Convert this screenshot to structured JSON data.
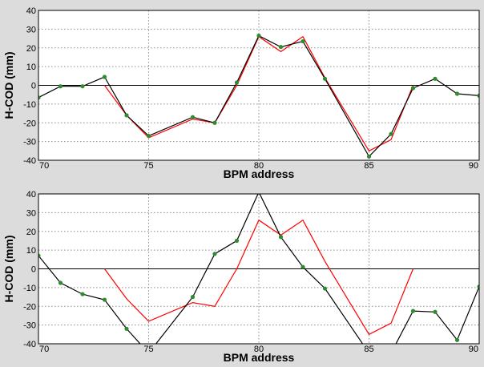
{
  "chart_data": [
    {
      "type": "line",
      "title": "",
      "xlabel": "BPM address",
      "ylabel": "H-COD (mm)",
      "xlim": [
        70,
        90
      ],
      "ylim": [
        -40,
        40
      ],
      "x_ticks": [
        "70",
        "75",
        "80",
        "85",
        "90"
      ],
      "y_ticks": [
        "40",
        "30",
        "20",
        "10",
        "0",
        "-10",
        "-20",
        "-30",
        "-40"
      ],
      "grid": true,
      "zero_line": true,
      "series": [
        {
          "color": "#ff0000",
          "marker": false,
          "x": [
            73,
            74,
            75,
            77,
            78,
            79,
            80,
            81,
            82,
            83,
            85,
            86,
            87
          ],
          "y": [
            0,
            -16,
            -28,
            -18,
            -20,
            0,
            26,
            18,
            26,
            4,
            -35,
            -29,
            0
          ]
        },
        {
          "color": "#000000",
          "marker": true,
          "marker_color": "#2e8b2e",
          "x": [
            70,
            71,
            72,
            73,
            74,
            75,
            77,
            78,
            79,
            80,
            81,
            82,
            83,
            85,
            86,
            87,
            88,
            89,
            90
          ],
          "y": [
            -6.5,
            -0.5,
            -0.5,
            4.5,
            -16,
            -27,
            -17,
            -20,
            1.5,
            26.5,
            20.5,
            23.5,
            3.5,
            -38,
            -26,
            -1.5,
            3.5,
            -4.5,
            -5.5
          ]
        }
      ]
    },
    {
      "type": "line",
      "title": "",
      "xlabel": "BPM address",
      "ylabel": "H-COD (mm)",
      "xlim": [
        70,
        90
      ],
      "ylim": [
        -40,
        40
      ],
      "x_ticks": [
        "70",
        "75",
        "80",
        "85",
        "90"
      ],
      "y_ticks": [
        "40",
        "30",
        "20",
        "10",
        "0",
        "-10",
        "-20",
        "-30",
        "-40"
      ],
      "grid": true,
      "zero_line": true,
      "series": [
        {
          "color": "#ff0000",
          "marker": false,
          "x": [
            73,
            74,
            75,
            77,
            78,
            79,
            80,
            81,
            82,
            83,
            85,
            86,
            87
          ],
          "y": [
            0,
            -16,
            -28,
            -18,
            -20,
            0,
            26,
            18,
            26,
            4,
            -35,
            -29,
            0
          ]
        },
        {
          "color": "#000000",
          "marker": true,
          "marker_color": "#2e8b2e",
          "x": [
            70,
            71,
            72,
            73,
            74,
            75,
            77,
            78,
            79,
            80,
            81,
            82,
            83,
            85,
            86,
            87,
            88,
            89,
            90
          ],
          "y": [
            7,
            -7.5,
            -13.5,
            -16.5,
            -32,
            -45,
            -15,
            8,
            15,
            41,
            17,
            1,
            -10.5,
            -45,
            -45,
            -22.5,
            -23,
            -38,
            -9.5
          ]
        }
      ]
    }
  ]
}
